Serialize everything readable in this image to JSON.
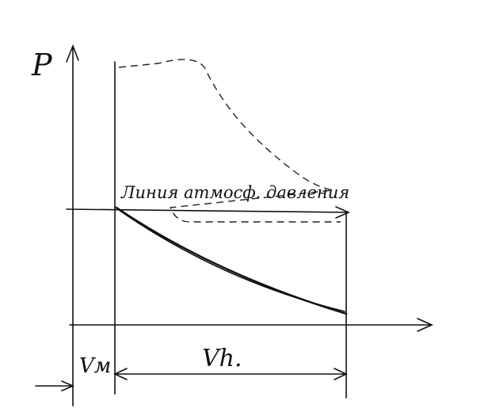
{
  "axis_label": "P",
  "annotation": "Линия атмосф. давления",
  "dimensions": {
    "clearance": "Vм",
    "stroke": "Vh."
  }
}
